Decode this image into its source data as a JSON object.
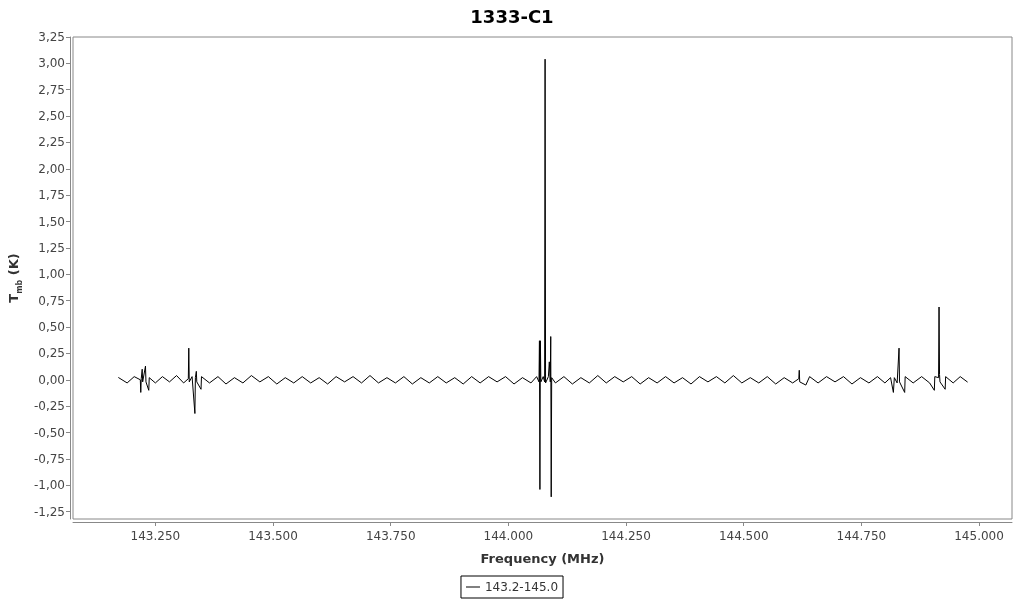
{
  "chart_data": {
    "type": "line",
    "title": "1333-C1",
    "xlabel": "Frequency (MHz)",
    "ylabel": "T$_{mb}$ (K)",
    "xlim": [
      143075,
      145070
    ],
    "ylim": [
      -1.32,
      3.25
    ],
    "xticks": [
      {
        "value": 143250,
        "label": "143.250"
      },
      {
        "value": 143500,
        "label": "143.500"
      },
      {
        "value": 143750,
        "label": "143.750"
      },
      {
        "value": 144000,
        "label": "144.000"
      },
      {
        "value": 144250,
        "label": "144.250"
      },
      {
        "value": 144500,
        "label": "144.500"
      },
      {
        "value": 144750,
        "label": "144.750"
      },
      {
        "value": 145000,
        "label": "145.000"
      }
    ],
    "yticks": [
      {
        "value": -1.25,
        "label": "-1,25"
      },
      {
        "value": -1,
        "label": "-1,00"
      },
      {
        "value": -0.75,
        "label": "-0,75"
      },
      {
        "value": -0.5,
        "label": "-0,50"
      },
      {
        "value": -0.25,
        "label": "-0,25"
      },
      {
        "value": 0,
        "label": "0,00"
      },
      {
        "value": 0.25,
        "label": "0,25"
      },
      {
        "value": 0.5,
        "label": "0,50"
      },
      {
        "value": 0.75,
        "label": "0,75"
      },
      {
        "value": 1,
        "label": "1,00"
      },
      {
        "value": 1.25,
        "label": "1,25"
      },
      {
        "value": 1.5,
        "label": "1,50"
      },
      {
        "value": 1.75,
        "label": "1,75"
      },
      {
        "value": 2,
        "label": "2,00"
      },
      {
        "value": 2.25,
        "label": "2,25"
      },
      {
        "value": 2.5,
        "label": "2,50"
      },
      {
        "value": 2.75,
        "label": "2,75"
      },
      {
        "value": 3,
        "label": "3,00"
      },
      {
        "value": 3.25,
        "label": "3,25"
      }
    ],
    "grid": false,
    "legend": "bottom",
    "marker": "none",
    "line_style": "solid",
    "x": [
      143172,
      143190,
      143205,
      143218,
      143219,
      143220,
      143222,
      143223,
      143229,
      143230,
      143236,
      143237,
      143250,
      143265,
      143280,
      143295,
      143310,
      143320,
      143321,
      143322,
      143328,
      143334,
      143335,
      143337,
      143338,
      143347,
      143348,
      143365,
      143383,
      143400,
      143418,
      143436,
      143454,
      143472,
      143490,
      143508,
      143526,
      143544,
      143562,
      143580,
      143598,
      143616,
      143634,
      143652,
      143670,
      143688,
      143706,
      143724,
      143742,
      143760,
      143778,
      143796,
      143814,
      143832,
      143850,
      143868,
      143886,
      143904,
      143922,
      143940,
      143958,
      143976,
      143994,
      144012,
      144030,
      144048,
      144060,
      144065,
      144066,
      144067,
      144068,
      144069,
      144074,
      144077,
      144078,
      144079,
      144085,
      144087,
      144089,
      144090,
      144091,
      144092,
      144100,
      144118,
      144136,
      144154,
      144172,
      144190,
      144208,
      144226,
      144244,
      144262,
      144280,
      144298,
      144316,
      144334,
      144352,
      144370,
      144388,
      144406,
      144424,
      144442,
      144460,
      144478,
      144496,
      144514,
      144532,
      144550,
      144568,
      144586,
      144604,
      144617,
      144618,
      144619,
      144632,
      144640,
      144658,
      144676,
      144694,
      144712,
      144730,
      144748,
      144766,
      144784,
      144800,
      144812,
      144818,
      144820,
      144826,
      144830,
      144831,
      144842,
      144843,
      144860,
      144878,
      144895,
      144905,
      144906,
      144914,
      144915,
      144916,
      144917,
      144928,
      144929,
      144945,
      144960,
      144975
    ],
    "series": [
      {
        "name": "143.2-145.0",
        "color": "#000000",
        "values": [
          0.02,
          -0.03,
          0.03,
          0.0,
          -0.12,
          0.01,
          0.1,
          -0.02,
          0.13,
          -0.02,
          -0.1,
          0.02,
          -0.03,
          0.03,
          -0.02,
          0.04,
          -0.03,
          0.01,
          0.3,
          -0.02,
          0.03,
          -0.32,
          0.02,
          0.08,
          -0.02,
          -0.09,
          0.03,
          -0.03,
          0.03,
          -0.04,
          0.02,
          -0.03,
          0.04,
          -0.02,
          0.03,
          -0.04,
          0.02,
          -0.03,
          0.03,
          -0.03,
          0.02,
          -0.04,
          0.03,
          -0.02,
          0.03,
          -0.03,
          0.04,
          -0.03,
          0.02,
          -0.03,
          0.03,
          -0.04,
          0.02,
          -0.03,
          0.03,
          -0.03,
          0.02,
          -0.04,
          0.03,
          -0.03,
          0.03,
          -0.02,
          0.03,
          -0.04,
          0.02,
          -0.03,
          0.03,
          -0.02,
          0.37,
          -1.04,
          0.37,
          -0.02,
          0.03,
          -0.02,
          3.04,
          -0.03,
          0.03,
          0.17,
          -0.02,
          0.41,
          -1.11,
          0.02,
          -0.03,
          0.03,
          -0.04,
          0.02,
          -0.03,
          0.04,
          -0.03,
          0.03,
          -0.02,
          0.03,
          -0.04,
          0.02,
          -0.03,
          0.03,
          -0.03,
          0.02,
          -0.04,
          0.03,
          -0.02,
          0.03,
          -0.03,
          0.04,
          -0.03,
          0.02,
          -0.03,
          0.03,
          -0.04,
          0.02,
          -0.03,
          0.01,
          0.09,
          -0.02,
          -0.05,
          0.03,
          -0.03,
          0.03,
          -0.02,
          0.03,
          -0.04,
          0.02,
          -0.03,
          0.03,
          -0.03,
          0.02,
          -0.12,
          0.02,
          -0.03,
          0.3,
          -0.02,
          -0.12,
          0.03,
          -0.03,
          0.03,
          -0.03,
          -0.1,
          0.03,
          0.02,
          0.69,
          0.05,
          -0.02,
          -0.09,
          0.03,
          -0.03,
          0.03,
          -0.02
        ]
      }
    ]
  }
}
